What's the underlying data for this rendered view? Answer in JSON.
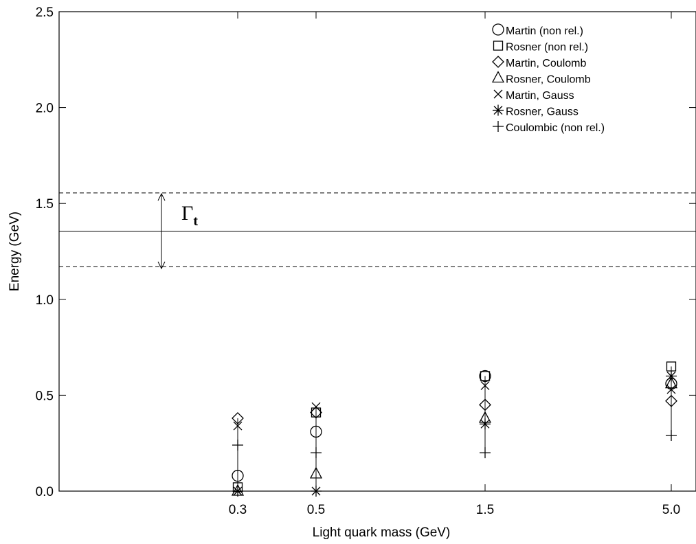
{
  "chart_data": {
    "type": "scatter",
    "title": "",
    "xlabel": "Light quark mass (GeV)",
    "ylabel": "Energy (GeV)",
    "ylim": [
      0,
      2.5
    ],
    "y_ticks": [
      "0.0",
      "0.5",
      "1.0",
      "1.5",
      "2.0",
      "2.5"
    ],
    "categories": [
      "0.3",
      "0.5",
      "1.5",
      "5.0"
    ],
    "legend_position": "top-right",
    "grid": false,
    "series": [
      {
        "name": "Martin (non rel.)",
        "marker": "circle",
        "values": [
          0.08,
          0.31,
          0.6,
          0.56
        ]
      },
      {
        "name": "Rosner (non rel.)",
        "marker": "square",
        "values": [
          0.02,
          0.41,
          0.6,
          0.65
        ]
      },
      {
        "name": "Martin, Coulomb",
        "marker": "diamond",
        "values": [
          0.38,
          0.41,
          0.45,
          0.47
        ]
      },
      {
        "name": "Rosner, Coulomb",
        "marker": "triangle",
        "values": [
          0.0,
          0.09,
          0.38,
          0.56
        ]
      },
      {
        "name": "Martin, Gauss",
        "marker": "cross",
        "values": [
          0.34,
          0.44,
          0.55,
          0.53
        ]
      },
      {
        "name": "Rosner, Gauss",
        "marker": "star",
        "values": [
          0.0,
          0.0,
          0.35,
          0.6
        ]
      },
      {
        "name": "Coulombic (non rel.)",
        "marker": "plus",
        "values": [
          0.24,
          0.2,
          0.2,
          0.29
        ]
      }
    ],
    "vertical_lines": [
      {
        "category": "0.3",
        "from": 0.0,
        "to": 0.38
      },
      {
        "category": "0.5",
        "from": 0.0,
        "to": 0.44
      },
      {
        "category": "1.5",
        "from": 0.2,
        "to": 0.6
      },
      {
        "category": "5.0",
        "from": 0.29,
        "to": 0.65
      }
    ],
    "reference_lines": [
      {
        "kind": "solid",
        "y": 1.355
      },
      {
        "kind": "dashed",
        "y": 1.555
      },
      {
        "kind": "dashed",
        "y": 1.17
      }
    ],
    "annotation": {
      "symbol": "Γ",
      "subscript": "t"
    }
  }
}
